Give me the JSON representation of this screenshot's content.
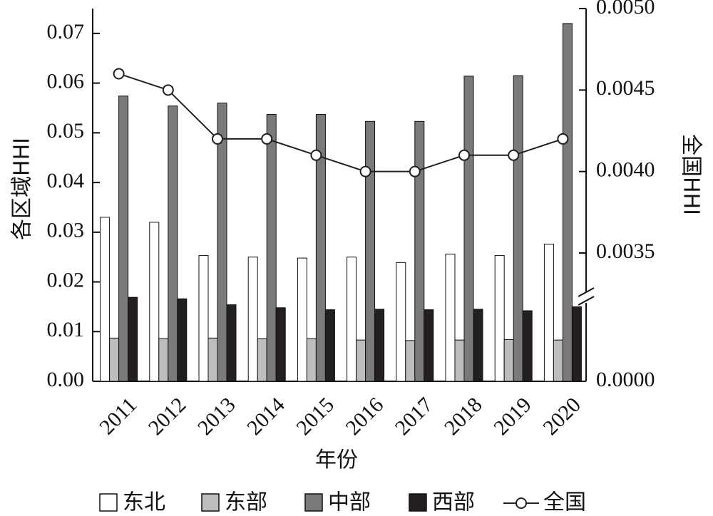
{
  "chart_data": {
    "type": "bar",
    "categories": [
      "2011",
      "2012",
      "2013",
      "2014",
      "2015",
      "2016",
      "2017",
      "2018",
      "2019",
      "2020"
    ],
    "xlabel": "年份",
    "ylabel": "各区域HHI",
    "y2label": "全国HHI",
    "ylim": [
      0,
      0.075
    ],
    "y2lim": [
      0,
      0.005
    ],
    "y_ticks": [
      "0.00",
      "0.01",
      "0.02",
      "0.03",
      "0.04",
      "0.05",
      "0.06",
      "0.07"
    ],
    "y2_ticks": [
      "0.0000",
      "0.0035",
      "0.0040",
      "0.0045",
      "0.0050"
    ],
    "y2_axis_break": true,
    "legend_position": "bottom",
    "series": [
      {
        "name": "东北",
        "type": "bar",
        "axis": "left",
        "color": "#ffffff",
        "values": [
          0.033,
          0.032,
          0.0253,
          0.025,
          0.0248,
          0.025,
          0.0239,
          0.0256,
          0.0253,
          0.0276
        ]
      },
      {
        "name": "东部",
        "type": "bar",
        "axis": "left",
        "color": "#bdbdbd",
        "values": [
          0.0087,
          0.0086,
          0.0087,
          0.0086,
          0.0086,
          0.0083,
          0.0082,
          0.0083,
          0.0084,
          0.0083
        ]
      },
      {
        "name": "中部",
        "type": "bar",
        "axis": "left",
        "color": "#7a7a7a",
        "values": [
          0.0574,
          0.0554,
          0.056,
          0.0537,
          0.0537,
          0.0523,
          0.0523,
          0.0614,
          0.0615,
          0.072
        ]
      },
      {
        "name": "西部",
        "type": "bar",
        "axis": "left",
        "color": "#231f20",
        "values": [
          0.0169,
          0.0166,
          0.0154,
          0.0148,
          0.0144,
          0.0145,
          0.0144,
          0.0145,
          0.0142,
          0.015
        ]
      },
      {
        "name": "全国",
        "type": "line",
        "axis": "right",
        "color": "#231f20",
        "values": [
          0.0046,
          0.0045,
          0.0042,
          0.0042,
          0.0041,
          0.004,
          0.004,
          0.0041,
          0.0041,
          0.0042
        ]
      }
    ]
  }
}
